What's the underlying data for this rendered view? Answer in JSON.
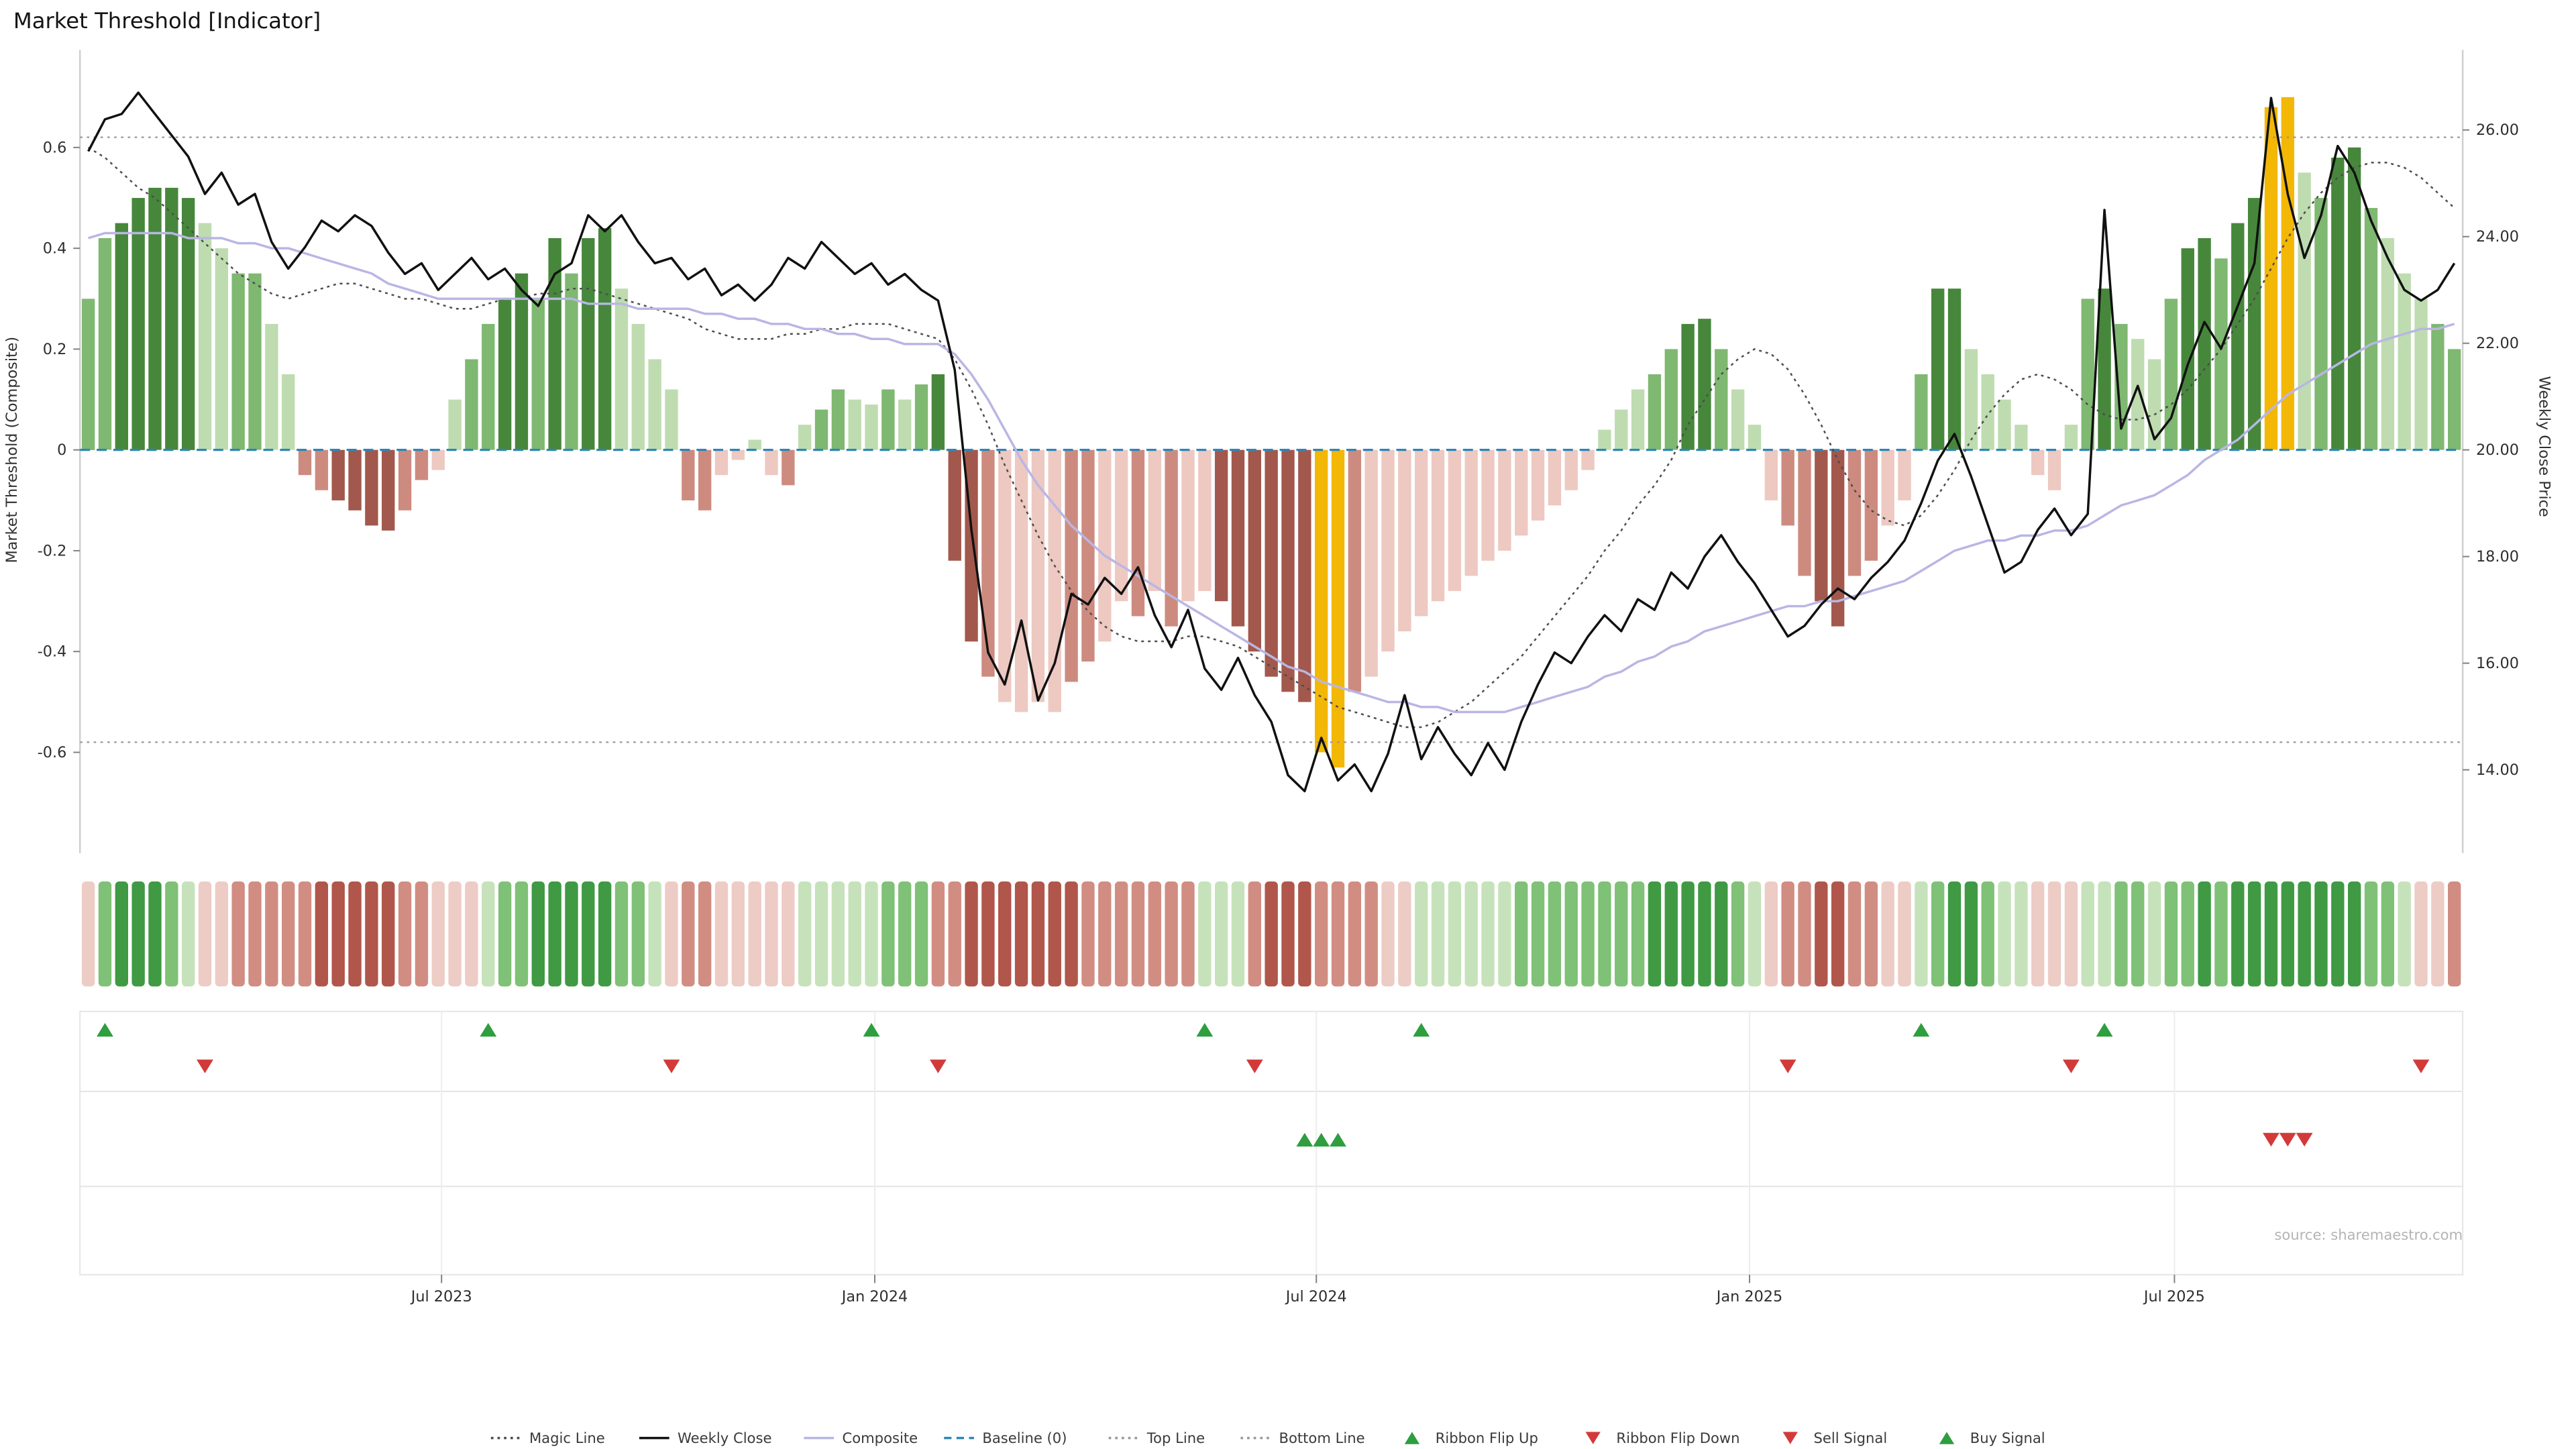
{
  "title": "Market Threshold [Indicator]",
  "source": "source: sharemaestro.com",
  "axes": {
    "left": {
      "title": "Market Threshold (Composite)",
      "ticks": [
        {
          "v": 0.6,
          "label": "0.6"
        },
        {
          "v": 0.4,
          "label": "0.4"
        },
        {
          "v": 0.2,
          "label": "0.2"
        },
        {
          "v": 0,
          "label": "0"
        },
        {
          "v": -0.2,
          "label": "-0.2"
        },
        {
          "v": -0.4,
          "label": "-0.4"
        },
        {
          "v": -0.6,
          "label": "-0.6"
        }
      ]
    },
    "right": {
      "title": "Weekly Close Price",
      "ticks": [
        {
          "v": 26,
          "label": "26.00"
        },
        {
          "v": 24,
          "label": "24.00"
        },
        {
          "v": 22,
          "label": "22.00"
        },
        {
          "v": 20,
          "label": "20.00"
        },
        {
          "v": 18,
          "label": "18.00"
        },
        {
          "v": 16,
          "label": "16.00"
        },
        {
          "v": 14,
          "label": "14.00"
        }
      ]
    },
    "x": {
      "ticks": [
        {
          "week": 21.2,
          "label": "Jul 2023"
        },
        {
          "week": 47.2,
          "label": "Jan 2024"
        },
        {
          "week": 73.7,
          "label": "Jul 2024"
        },
        {
          "week": 99.7,
          "label": "Jan 2025"
        },
        {
          "week": 125.2,
          "label": "Jul 2025"
        }
      ]
    }
  },
  "colors": {
    "bar": {
      "g1": "#bedcb0",
      "g2": "#7fb871",
      "g3": "#47873c",
      "r1": "#edc9c2",
      "r2": "#cd8b80",
      "r3": "#a2584c",
      "Y": "#f3b705"
    },
    "ribbon": {
      "g": [
        "#c6e2ba",
        "#7fc176",
        "#3f9a43"
      ],
      "r": [
        "#edccc5",
        "#d18d82",
        "#b0564a"
      ]
    },
    "lines": {
      "close": "#111111",
      "composite": "#b9b6e4",
      "magic": "#4d4d4d",
      "baseline": "#2d86b8",
      "band": "#999999"
    },
    "signals": {
      "up": "#2e9e3f",
      "down": "#d23a3a"
    }
  },
  "chart_data": {
    "type": "bar+line",
    "x_unit": "weekly bars, approx Feb 2023 - Nov 2025",
    "n_weeks": 143,
    "baseline": 0,
    "top_line": 0.62,
    "bottom_line": -0.58,
    "left_axis_range": [
      -0.78,
      0.8
    ],
    "right_axis_range": [
      13.2,
      27.5
    ],
    "composite_bars": [
      0.3,
      0.42,
      0.45,
      0.5,
      0.52,
      0.52,
      0.5,
      0.45,
      0.4,
      0.35,
      0.35,
      0.25,
      0.15,
      -0.05,
      -0.08,
      -0.1,
      -0.12,
      -0.15,
      -0.16,
      -0.12,
      -0.06,
      -0.04,
      0.1,
      0.18,
      0.25,
      0.3,
      0.35,
      0.3,
      0.42,
      0.35,
      0.42,
      0.44,
      0.32,
      0.25,
      0.18,
      0.12,
      -0.1,
      -0.12,
      -0.05,
      -0.02,
      0.02,
      -0.05,
      -0.07,
      0.05,
      0.08,
      0.12,
      0.1,
      0.09,
      0.12,
      0.1,
      0.13,
      0.15,
      -0.22,
      -0.38,
      -0.45,
      -0.5,
      -0.52,
      -0.5,
      -0.52,
      -0.46,
      -0.42,
      -0.38,
      -0.3,
      -0.33,
      -0.28,
      -0.35,
      -0.3,
      -0.28,
      -0.3,
      -0.35,
      -0.4,
      -0.45,
      -0.48,
      -0.5,
      -0.6,
      -0.63,
      -0.48,
      -0.45,
      -0.4,
      -0.36,
      -0.33,
      -0.3,
      -0.28,
      -0.25,
      -0.22,
      -0.2,
      -0.17,
      -0.14,
      -0.11,
      -0.08,
      -0.04,
      0.04,
      0.08,
      0.12,
      0.15,
      0.2,
      0.25,
      0.26,
      0.2,
      0.12,
      0.05,
      -0.1,
      -0.15,
      -0.25,
      -0.3,
      -0.35,
      -0.25,
      -0.22,
      -0.15,
      -0.1,
      0.15,
      0.32,
      0.32,
      0.2,
      0.15,
      0.1,
      0.05,
      -0.05,
      -0.08,
      0.05,
      0.3,
      0.32,
      0.25,
      0.22,
      0.18,
      0.3,
      0.4,
      0.42,
      0.38,
      0.45,
      0.5,
      0.68,
      0.7,
      0.55,
      0.5,
      0.58,
      0.6,
      0.48,
      0.42,
      0.35,
      0.3,
      0.25,
      0.2
    ],
    "bar_color_codes": [
      "g2",
      "g2",
      "g3",
      "g3",
      "g3",
      "g3",
      "g3",
      "g1",
      "g1",
      "g2",
      "g2",
      "g1",
      "g1",
      "r2",
      "r2",
      "r3",
      "r3",
      "r3",
      "r3",
      "r2",
      "r2",
      "r1",
      "g1",
      "g2",
      "g2",
      "g3",
      "g3",
      "g2",
      "g3",
      "g2",
      "g3",
      "g3",
      "g1",
      "g1",
      "g1",
      "g1",
      "r2",
      "r2",
      "r1",
      "r1",
      "g1",
      "r1",
      "r2",
      "g1",
      "g2",
      "g2",
      "g1",
      "g1",
      "g2",
      "g1",
      "g2",
      "g3",
      "r3",
      "r3",
      "r2",
      "r1",
      "r1",
      "r1",
      "r1",
      "r2",
      "r2",
      "r1",
      "r1",
      "r2",
      "r1",
      "r2",
      "r1",
      "r1",
      "r3",
      "r3",
      "r3",
      "r3",
      "r3",
      "r3",
      "Y",
      "Y",
      "r2",
      "r1",
      "r1",
      "r1",
      "r1",
      "r1",
      "r1",
      "r1",
      "r1",
      "r1",
      "r1",
      "r1",
      "r1",
      "r1",
      "r1",
      "g1",
      "g1",
      "g1",
      "g2",
      "g2",
      "g3",
      "g3",
      "g2",
      "g1",
      "g1",
      "r1",
      "r2",
      "r2",
      "r3",
      "r3",
      "r2",
      "r2",
      "r1",
      "r1",
      "g2",
      "g3",
      "g3",
      "g1",
      "g1",
      "g1",
      "g1",
      "r1",
      "r1",
      "g1",
      "g2",
      "g3",
      "g2",
      "g1",
      "g1",
      "g2",
      "g3",
      "g3",
      "g2",
      "g3",
      "g3",
      "Y",
      "Y",
      "g1",
      "g2",
      "g3",
      "g3",
      "g2",
      "g1",
      "g1",
      "g1",
      "g2",
      "g2"
    ],
    "weekly_close": [
      25.6,
      26.2,
      26.3,
      26.7,
      26.3,
      25.9,
      25.5,
      24.8,
      25.2,
      24.6,
      24.8,
      23.9,
      23.4,
      23.8,
      24.3,
      24.1,
      24.4,
      24.2,
      23.7,
      23.3,
      23.5,
      23.0,
      23.3,
      23.6,
      23.2,
      23.4,
      23.0,
      22.7,
      23.3,
      23.5,
      24.4,
      24.1,
      24.4,
      23.9,
      23.5,
      23.6,
      23.2,
      23.4,
      22.9,
      23.1,
      22.8,
      23.1,
      23.6,
      23.4,
      23.9,
      23.6,
      23.3,
      23.5,
      23.1,
      23.3,
      23.0,
      22.8,
      21.5,
      18.5,
      16.2,
      15.6,
      16.8,
      15.3,
      16.0,
      17.3,
      17.1,
      17.6,
      17.3,
      17.8,
      16.9,
      16.3,
      17.0,
      15.9,
      15.5,
      16.1,
      15.4,
      14.9,
      13.9,
      13.6,
      14.6,
      13.8,
      14.1,
      13.6,
      14.3,
      15.4,
      14.2,
      14.8,
      14.3,
      13.9,
      14.5,
      14.0,
      14.9,
      15.6,
      16.2,
      16.0,
      16.5,
      16.9,
      16.6,
      17.2,
      17.0,
      17.7,
      17.4,
      18.0,
      18.4,
      17.9,
      17.5,
      17.0,
      16.5,
      16.7,
      17.1,
      17.4,
      17.2,
      17.6,
      17.9,
      18.3,
      19.0,
      19.8,
      20.3,
      19.5,
      18.6,
      17.7,
      17.9,
      18.5,
      18.9,
      18.4,
      18.8,
      24.5,
      20.4,
      21.2,
      20.2,
      20.6,
      21.6,
      22.4,
      21.9,
      22.7,
      23.5,
      26.6,
      24.8,
      23.6,
      24.4,
      25.7,
      25.2,
      24.3,
      23.6,
      23.0,
      22.8,
      23.0,
      23.5
    ],
    "composite_line": [
      0.42,
      0.43,
      0.43,
      0.43,
      0.43,
      0.43,
      0.42,
      0.42,
      0.42,
      0.41,
      0.41,
      0.4,
      0.4,
      0.39,
      0.38,
      0.37,
      0.36,
      0.35,
      0.33,
      0.32,
      0.31,
      0.3,
      0.3,
      0.3,
      0.3,
      0.3,
      0.3,
      0.3,
      0.3,
      0.3,
      0.29,
      0.29,
      0.29,
      0.28,
      0.28,
      0.28,
      0.28,
      0.27,
      0.27,
      0.26,
      0.26,
      0.25,
      0.25,
      0.24,
      0.24,
      0.23,
      0.23,
      0.22,
      0.22,
      0.21,
      0.21,
      0.21,
      0.19,
      0.15,
      0.1,
      0.04,
      -0.02,
      -0.07,
      -0.11,
      -0.15,
      -0.18,
      -0.21,
      -0.23,
      -0.25,
      -0.27,
      -0.29,
      -0.31,
      -0.33,
      -0.35,
      -0.37,
      -0.39,
      -0.41,
      -0.43,
      -0.44,
      -0.46,
      -0.47,
      -0.48,
      -0.49,
      -0.5,
      -0.5,
      -0.51,
      -0.51,
      -0.52,
      -0.52,
      -0.52,
      -0.52,
      -0.51,
      -0.5,
      -0.49,
      -0.48,
      -0.47,
      -0.45,
      -0.44,
      -0.42,
      -0.41,
      -0.39,
      -0.38,
      -0.36,
      -0.35,
      -0.34,
      -0.33,
      -0.32,
      -0.31,
      -0.31,
      -0.3,
      -0.3,
      -0.29,
      -0.28,
      -0.27,
      -0.26,
      -0.24,
      -0.22,
      -0.2,
      -0.19,
      -0.18,
      -0.18,
      -0.17,
      -0.17,
      -0.16,
      -0.16,
      -0.15,
      -0.13,
      -0.11,
      -0.1,
      -0.09,
      -0.07,
      -0.05,
      -0.02,
      0.0,
      0.02,
      0.05,
      0.08,
      0.11,
      0.13,
      0.15,
      0.17,
      0.19,
      0.21,
      0.22,
      0.23,
      0.24,
      0.24,
      0.25
    ],
    "magic_line": [
      0.6,
      0.58,
      0.55,
      0.52,
      0.5,
      0.47,
      0.44,
      0.41,
      0.38,
      0.35,
      0.33,
      0.31,
      0.3,
      0.31,
      0.32,
      0.33,
      0.33,
      0.32,
      0.31,
      0.3,
      0.3,
      0.29,
      0.28,
      0.28,
      0.29,
      0.3,
      0.3,
      0.31,
      0.31,
      0.32,
      0.32,
      0.31,
      0.3,
      0.29,
      0.28,
      0.27,
      0.26,
      0.24,
      0.23,
      0.22,
      0.22,
      0.22,
      0.23,
      0.23,
      0.24,
      0.24,
      0.25,
      0.25,
      0.25,
      0.24,
      0.23,
      0.22,
      0.18,
      0.12,
      0.05,
      -0.03,
      -0.1,
      -0.17,
      -0.23,
      -0.28,
      -0.32,
      -0.35,
      -0.37,
      -0.38,
      -0.38,
      -0.38,
      -0.37,
      -0.37,
      -0.38,
      -0.39,
      -0.41,
      -0.43,
      -0.45,
      -0.47,
      -0.49,
      -0.51,
      -0.52,
      -0.53,
      -0.54,
      -0.55,
      -0.55,
      -0.54,
      -0.52,
      -0.5,
      -0.47,
      -0.44,
      -0.41,
      -0.37,
      -0.33,
      -0.29,
      -0.25,
      -0.2,
      -0.16,
      -0.11,
      -0.07,
      -0.02,
      0.05,
      0.1,
      0.15,
      0.18,
      0.2,
      0.19,
      0.16,
      0.11,
      0.05,
      -0.02,
      -0.08,
      -0.12,
      -0.14,
      -0.15,
      -0.13,
      -0.09,
      -0.04,
      0.02,
      0.07,
      0.11,
      0.14,
      0.15,
      0.14,
      0.12,
      0.09,
      0.07,
      0.06,
      0.06,
      0.07,
      0.09,
      0.12,
      0.16,
      0.2,
      0.25,
      0.3,
      0.36,
      0.42,
      0.47,
      0.51,
      0.54,
      0.56,
      0.57,
      0.57,
      0.56,
      0.54,
      0.51,
      0.48
    ],
    "ribbon_levels": [
      -1,
      2,
      3,
      3,
      3,
      2,
      1,
      -1,
      -1,
      -2,
      -2,
      -2,
      -2,
      -2,
      -3,
      -3,
      -3,
      -3,
      -3,
      -2,
      -2,
      -1,
      -1,
      -1,
      1,
      2,
      2,
      3,
      3,
      3,
      3,
      3,
      2,
      2,
      1,
      -1,
      -2,
      -2,
      -1,
      -1,
      -1,
      -1,
      -1,
      1,
      1,
      1,
      1,
      1,
      2,
      2,
      2,
      -2,
      -2,
      -3,
      -3,
      -3,
      -3,
      -3,
      -3,
      -3,
      -2,
      -2,
      -2,
      -2,
      -2,
      -2,
      -2,
      1,
      1,
      1,
      -2,
      -3,
      -3,
      -3,
      -2,
      -2,
      -2,
      -2,
      -1,
      -1,
      1,
      1,
      1,
      1,
      1,
      1,
      2,
      2,
      2,
      2,
      2,
      2,
      2,
      2,
      3,
      3,
      3,
      3,
      3,
      2,
      1,
      -1,
      -2,
      -2,
      -3,
      -3,
      -2,
      -2,
      -1,
      -1,
      1,
      2,
      3,
      3,
      2,
      1,
      1,
      -1,
      -1,
      -1,
      1,
      1,
      2,
      2,
      1,
      2,
      2,
      3,
      2,
      3,
      3,
      3,
      3,
      3,
      3,
      3,
      3,
      2,
      2,
      1,
      -1,
      -1,
      -2
    ],
    "signals": {
      "ribbon_flip_up_weeks": [
        1,
        24,
        47,
        67,
        80,
        110,
        121
      ],
      "ribbon_flip_down_weeks": [
        7,
        35,
        51,
        70,
        102,
        119,
        140
      ],
      "buy_signal_weeks": [
        73,
        74,
        75
      ],
      "sell_signal_weeks": [
        131,
        132,
        133
      ]
    }
  },
  "legend": {
    "items": [
      {
        "label": "Magic Line",
        "marker": "line-dotted",
        "color": "#4d4d4d"
      },
      {
        "label": "Weekly Close",
        "marker": "line",
        "color": "#111111"
      },
      {
        "label": "Composite",
        "marker": "line",
        "color": "#b9b6e4"
      },
      {
        "label": "Baseline (0)",
        "marker": "line-dashed",
        "color": "#2d86b8"
      },
      {
        "label": "Top Line",
        "marker": "line-dotted",
        "color": "#999999"
      },
      {
        "label": "Bottom Line",
        "marker": "line-dotted",
        "color": "#999999"
      },
      {
        "label": "Ribbon Flip Up",
        "marker": "tri-up",
        "color": "#2e9e3f"
      },
      {
        "label": "Ribbon Flip Down",
        "marker": "tri-down",
        "color": "#d23a3a"
      },
      {
        "label": "Sell Signal",
        "marker": "tri-down",
        "color": "#d23a3a"
      },
      {
        "label": "Buy Signal",
        "marker": "tri-up",
        "color": "#2e9e3f"
      }
    ]
  }
}
